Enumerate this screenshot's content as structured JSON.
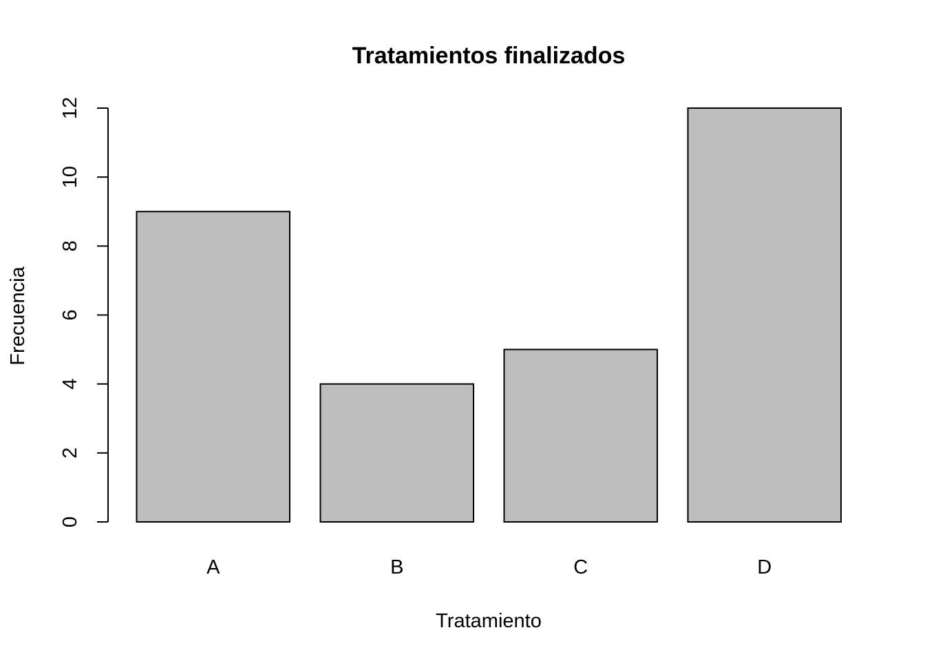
{
  "chart_data": {
    "type": "bar",
    "title": "Tratamientos finalizados",
    "xlabel": "Tratamiento",
    "ylabel": "Frecuencia",
    "categories": [
      "A",
      "B",
      "C",
      "D"
    ],
    "values": [
      9,
      4,
      5,
      12
    ],
    "ylim": [
      0,
      12
    ],
    "yticks": [
      "0",
      "2",
      "4",
      "6",
      "8",
      "10",
      "12"
    ],
    "grid": false,
    "bar_color": "#bebebe",
    "border_color": "#000000"
  }
}
